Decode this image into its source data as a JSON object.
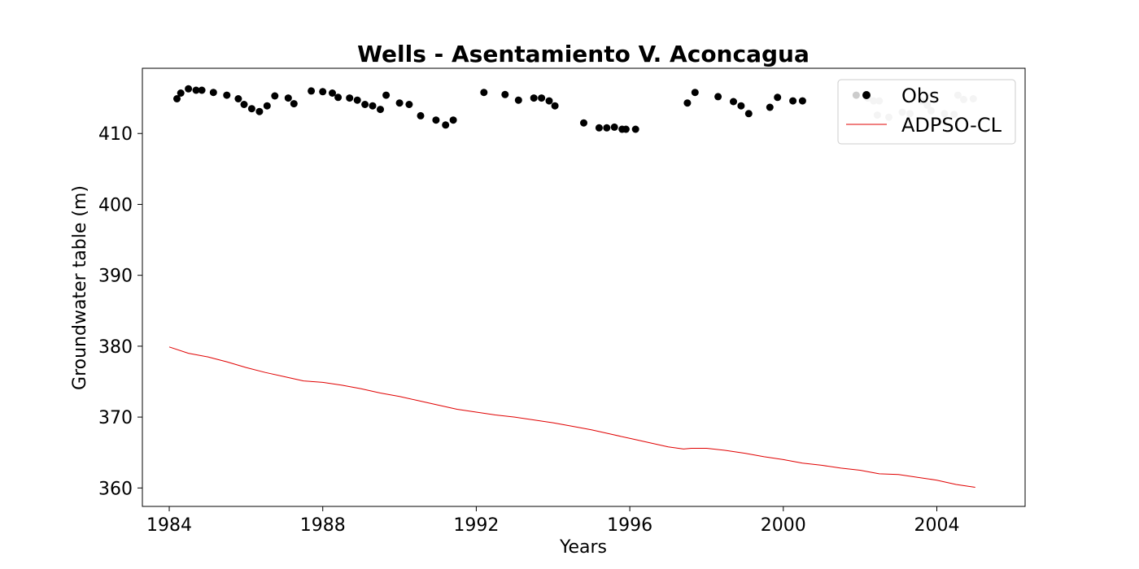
{
  "colors": {
    "obs": "#000000",
    "obs_faded": "#c8c8c8",
    "model": "#e00000",
    "frame": "#000000"
  },
  "chart_data": {
    "type": "line",
    "title": "Wells - Asentamiento V. Aconcagua",
    "xlabel": "Years",
    "ylabel": "Groundwater table (m)",
    "xlim": [
      1983.3,
      2006.3
    ],
    "ylim": [
      357.4,
      419.2
    ],
    "xticks": [
      1984,
      1988,
      1992,
      1996,
      2000,
      2004
    ],
    "yticks": [
      360,
      370,
      380,
      390,
      400,
      410
    ],
    "grid": false,
    "legend": {
      "placement": "top-right",
      "entries": [
        "Obs",
        "ADPSO-CL"
      ]
    },
    "series": [
      {
        "name": "Obs",
        "kind": "scatter",
        "x": [
          1984.2,
          1984.3,
          1984.5,
          1984.7,
          1984.85,
          1985.15,
          1985.5,
          1985.8,
          1985.95,
          1986.15,
          1986.35,
          1986.55,
          1986.75,
          1987.1,
          1987.25,
          1987.7,
          1988.0,
          1988.25,
          1988.4,
          1988.7,
          1988.9,
          1989.1,
          1989.3,
          1989.5,
          1989.65,
          1990.0,
          1990.25,
          1990.55,
          1990.95,
          1991.2,
          1991.4,
          1992.2,
          1992.75,
          1993.1,
          1993.5,
          1993.7,
          1993.9,
          1994.05,
          1994.8,
          1995.2,
          1995.4,
          1995.6,
          1995.8,
          1995.9,
          1996.15,
          1997.5,
          1997.7,
          1998.3,
          1998.7,
          1998.9,
          1999.1,
          1999.65,
          1999.85,
          2000.25,
          2000.5,
          2001.9
        ],
        "y": [
          414.9,
          415.7,
          416.3,
          416.1,
          416.1,
          415.8,
          415.4,
          414.9,
          414.1,
          413.5,
          413.1,
          413.9,
          415.3,
          415.0,
          414.2,
          416.0,
          415.9,
          415.7,
          415.1,
          415.0,
          414.7,
          414.1,
          413.9,
          413.4,
          415.4,
          414.3,
          414.1,
          412.5,
          411.9,
          411.2,
          411.9,
          415.8,
          415.5,
          414.7,
          415.0,
          415.0,
          414.6,
          413.9,
          411.5,
          410.8,
          410.8,
          410.9,
          410.6,
          410.6,
          410.6,
          414.3,
          415.8,
          415.2,
          414.5,
          413.9,
          412.8,
          413.7,
          415.1,
          414.6,
          414.6,
          415.4
        ]
      },
      {
        "name": "",
        "kind": "scatter-faded",
        "x": [
          2002.2,
          2002.35,
          2002.5,
          2002.45,
          2002.75,
          2003.1,
          2003.3,
          2003.6,
          2003.75,
          2003.85,
          2004.2,
          2004.45,
          2004.55,
          2004.7,
          2004.95
        ],
        "y": [
          415.0,
          414.6,
          414.6,
          412.6,
          412.3,
          413.0,
          412.8,
          414.6,
          414.0,
          413.2,
          412.8,
          412.7,
          415.4,
          414.8,
          414.9
        ]
      },
      {
        "name": "ADPSO-CL",
        "kind": "line",
        "x": [
          1984.0,
          1984.5,
          1985.0,
          1985.5,
          1986.0,
          1986.5,
          1987.0,
          1987.5,
          1987.75,
          1988.0,
          1988.5,
          1989.0,
          1989.5,
          1990.0,
          1990.5,
          1991.0,
          1991.5,
          1992.0,
          1992.5,
          1993.0,
          1993.5,
          1994.0,
          1994.5,
          1995.0,
          1995.5,
          1996.0,
          1996.5,
          1997.0,
          1997.4,
          1997.6,
          1998.0,
          1998.5,
          1999.0,
          1999.5,
          2000.0,
          2000.5,
          2001.0,
          2001.5,
          2002.0,
          2002.5,
          2003.0,
          2003.5,
          2004.0,
          2004.5,
          2005.0
        ],
        "y": [
          379.9,
          379.0,
          378.5,
          377.8,
          377.0,
          376.3,
          375.7,
          375.1,
          375.0,
          374.9,
          374.5,
          374.0,
          373.4,
          372.9,
          372.3,
          371.7,
          371.1,
          370.7,
          370.3,
          370.0,
          369.6,
          369.2,
          368.7,
          368.2,
          367.6,
          367.0,
          366.4,
          365.8,
          365.5,
          365.6,
          365.6,
          365.3,
          364.9,
          364.4,
          364.0,
          363.5,
          363.2,
          362.8,
          362.5,
          362.0,
          361.9,
          361.5,
          361.1,
          360.5,
          360.1
        ]
      }
    ]
  }
}
